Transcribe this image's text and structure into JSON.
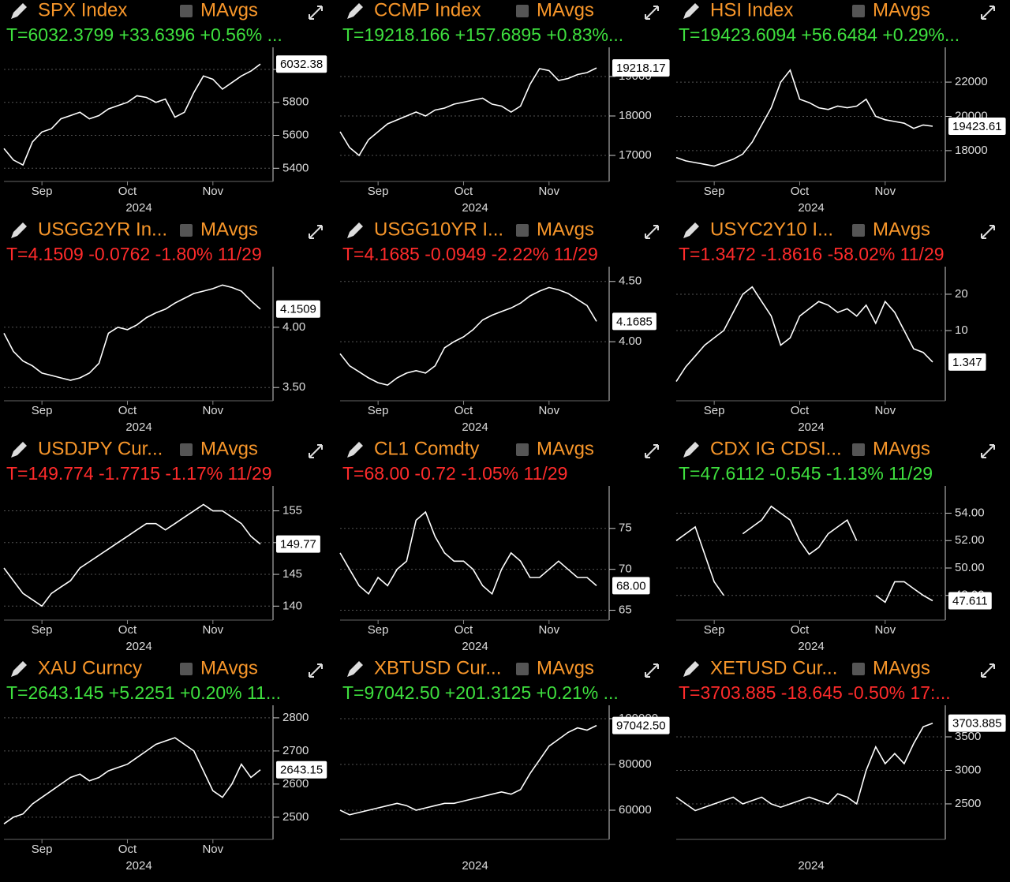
{
  "chart_data": [
    {
      "type": "line",
      "title": "SPX Index",
      "mavgs": "MAvgs",
      "subtitle": "T=6032.3799 +33.6396 +0.56% ...",
      "subtitle_color": "#3ee03e",
      "color": "#ffffff",
      "xlabel": "2024",
      "grid": true,
      "categories": [
        null,
        null,
        null,
        null,
        "Sep",
        null,
        null,
        null,
        null,
        null,
        null,
        null,
        null,
        "Oct",
        null,
        null,
        null,
        null,
        null,
        null,
        null,
        null,
        "Nov",
        null,
        null,
        null,
        null,
        null
      ],
      "values": [
        5520,
        5450,
        5420,
        5560,
        5620,
        5640,
        5700,
        5720,
        5740,
        5700,
        5720,
        5760,
        5780,
        5800,
        5840,
        5830,
        5800,
        5820,
        5710,
        5740,
        5860,
        5960,
        5940,
        5880,
        5920,
        5960,
        5990,
        6032.38
      ],
      "ylim": [
        5320,
        6110
      ],
      "yticks": [
        5400,
        5600,
        5800,
        6000
      ]
    },
    {
      "type": "line",
      "title": "CCMP Index",
      "mavgs": "MAvgs",
      "subtitle": "T=19218.166 +157.6895 +0.83%...",
      "subtitle_color": "#3ee03e",
      "color": "#ffffff",
      "xlabel": "2024",
      "grid": true,
      "categories": [
        null,
        null,
        null,
        null,
        "Sep",
        null,
        null,
        null,
        null,
        null,
        null,
        null,
        null,
        "Oct",
        null,
        null,
        null,
        null,
        null,
        null,
        null,
        null,
        "Nov",
        null,
        null,
        null,
        null,
        null
      ],
      "values": [
        17600,
        17200,
        17000,
        17400,
        17600,
        17800,
        17900,
        18000,
        18100,
        18000,
        18150,
        18200,
        18300,
        18350,
        18400,
        18450,
        18300,
        18250,
        18100,
        18250,
        18800,
        19200,
        19150,
        18900,
        18950,
        19050,
        19100,
        19218.17
      ],
      "ylim": [
        16340,
        19640
      ],
      "yticks": [
        17000,
        18000,
        19000
      ]
    },
    {
      "type": "line",
      "title": "HSI Index",
      "mavgs": "MAvgs",
      "subtitle": "T=19423.6094 +56.6484 +0.29%...",
      "subtitle_color": "#3ee03e",
      "color": "#ffffff",
      "xlabel": "2024",
      "grid": true,
      "categories": [
        null,
        null,
        null,
        null,
        "Sep",
        null,
        null,
        null,
        null,
        null,
        null,
        null,
        null,
        "Oct",
        null,
        null,
        null,
        null,
        null,
        null,
        null,
        null,
        "Nov",
        null,
        null,
        null,
        null,
        null
      ],
      "values": [
        17600,
        17400,
        17300,
        17200,
        17100,
        17300,
        17500,
        17800,
        18500,
        19500,
        20500,
        22000,
        22700,
        21000,
        20800,
        20500,
        20400,
        20600,
        20500,
        20600,
        21000,
        20000,
        19800,
        19700,
        19600,
        19300,
        19500,
        19423.61
      ],
      "ylim": [
        16200,
        23800
      ],
      "yticks": [
        18000,
        20000,
        22000
      ]
    },
    {
      "type": "line",
      "title": "USGG2YR In...",
      "mavgs": "MAvgs",
      "subtitle": "T=4.1509 -0.0762 -1.80% 11/29",
      "subtitle_color": "#ff2b2b",
      "color": "#ffffff",
      "xlabel": "2024",
      "grid": true,
      "categories": [
        null,
        null,
        null,
        null,
        "Sep",
        null,
        null,
        null,
        null,
        null,
        null,
        null,
        null,
        "Oct",
        null,
        null,
        null,
        null,
        null,
        null,
        null,
        null,
        "Nov",
        null,
        null,
        null,
        null,
        null
      ],
      "values": [
        3.95,
        3.8,
        3.72,
        3.68,
        3.62,
        3.6,
        3.58,
        3.56,
        3.58,
        3.62,
        3.7,
        3.95,
        4.0,
        3.98,
        4.02,
        4.08,
        4.12,
        4.15,
        4.2,
        4.24,
        4.28,
        4.3,
        4.32,
        4.35,
        4.33,
        4.3,
        4.22,
        4.1509
      ],
      "ylim": [
        3.39,
        4.47
      ],
      "yticks": [
        {
          "value": 3.5,
          "label": "3.50"
        },
        {
          "value": 4,
          "label": "4.00"
        }
      ]
    },
    {
      "type": "line",
      "title": "USGG10YR I...",
      "mavgs": "MAvgs",
      "subtitle": "T=4.1685 -0.0949 -2.22% 11/29",
      "subtitle_color": "#ff2b2b",
      "color": "#ffffff",
      "xlabel": "2024",
      "grid": true,
      "categories": [
        null,
        null,
        null,
        null,
        "Sep",
        null,
        null,
        null,
        null,
        null,
        null,
        null,
        null,
        "Oct",
        null,
        null,
        null,
        null,
        null,
        null,
        null,
        null,
        "Nov",
        null,
        null,
        null,
        null,
        null
      ],
      "values": [
        3.9,
        3.8,
        3.75,
        3.7,
        3.66,
        3.64,
        3.7,
        3.74,
        3.76,
        3.74,
        3.8,
        3.95,
        4.0,
        4.04,
        4.1,
        4.18,
        4.22,
        4.25,
        4.28,
        4.32,
        4.38,
        4.42,
        4.45,
        4.43,
        4.4,
        4.35,
        4.3,
        4.1685
      ],
      "ylim": [
        3.51,
        4.59
      ],
      "yticks": [
        {
          "value": 4,
          "label": "4.00"
        },
        {
          "value": 4.5,
          "label": "4.50"
        }
      ]
    },
    {
      "type": "line",
      "title": "USYC2Y10 I...",
      "mavgs": "MAvgs",
      "subtitle": "T=1.3472 -1.8616 -58.02% 11/29",
      "subtitle_color": "#ff2b2b",
      "color": "#ffffff",
      "xlabel": "2024",
      "grid": true,
      "categories": [
        null,
        null,
        null,
        null,
        "Sep",
        null,
        null,
        null,
        null,
        null,
        null,
        null,
        null,
        "Oct",
        null,
        null,
        null,
        null,
        null,
        null,
        null,
        null,
        "Nov",
        null,
        null,
        null,
        null,
        null
      ],
      "values": [
        -4,
        0,
        3,
        6,
        8,
        10,
        15,
        20,
        22,
        18,
        14,
        6,
        8,
        14,
        16,
        18,
        17,
        15,
        16,
        14,
        17,
        12,
        18,
        15,
        10,
        5,
        4,
        1.347
      ],
      "ylim": [
        -9.3,
        26.5
      ],
      "yticks": [
        10,
        20
      ]
    },
    {
      "type": "line",
      "title": "USDJPY Cur...",
      "mavgs": "MAvgs",
      "subtitle": "T=149.774 -1.7715 -1.17% 11/29",
      "subtitle_color": "#ff2b2b",
      "color": "#ffffff",
      "xlabel": "2024",
      "grid": true,
      "categories": [
        null,
        null,
        null,
        null,
        "Sep",
        null,
        null,
        null,
        null,
        null,
        null,
        null,
        null,
        "Oct",
        null,
        null,
        null,
        null,
        null,
        null,
        null,
        null,
        "Nov",
        null,
        null,
        null,
        null,
        null
      ],
      "values": [
        146,
        144,
        142,
        141,
        140,
        142,
        143,
        144,
        146,
        147,
        148,
        149,
        150,
        151,
        152,
        153,
        153,
        152,
        153,
        154,
        155,
        156,
        155,
        155,
        154,
        153,
        151,
        149.77
      ],
      "ylim": [
        137.8,
        158.3
      ],
      "yticks": [
        140,
        145,
        150,
        155
      ]
    },
    {
      "type": "line",
      "title": "CL1 Comdty",
      "mavgs": "MAvgs",
      "subtitle": "T=68.00 -0.72 -1.05% 11/29",
      "subtitle_color": "#ff2b2b",
      "color": "#ffffff",
      "xlabel": "2024",
      "grid": true,
      "categories": [
        null,
        null,
        null,
        null,
        "Sep",
        null,
        null,
        null,
        null,
        null,
        null,
        null,
        null,
        "Oct",
        null,
        null,
        null,
        null,
        null,
        null,
        null,
        null,
        "Nov",
        null,
        null,
        null,
        null,
        null
      ],
      "values": [
        72,
        70,
        68,
        67,
        69,
        68,
        70,
        71,
        76,
        77,
        74,
        72,
        71,
        71,
        70,
        68,
        67,
        70,
        72,
        71,
        69,
        69,
        70,
        71,
        70,
        69,
        69,
        68
      ],
      "value_labels": [
        null,
        null,
        null,
        null,
        null,
        null,
        null,
        null,
        null,
        null,
        null,
        null,
        null,
        null,
        null,
        null,
        null,
        null,
        null,
        null,
        null,
        null,
        null,
        null,
        null,
        null,
        null,
        "68.00"
      ],
      "ylim": [
        63.8,
        79.7
      ],
      "yticks": [
        65,
        70,
        75
      ]
    },
    {
      "type": "line",
      "title": "CDX IG CDSI...",
      "mavgs": "MAvgs",
      "subtitle": "T=47.6112 -0.545 -1.13% 11/29",
      "subtitle_color": "#3ee03e",
      "color": "#ffffff",
      "xlabel": "2024",
      "grid": true,
      "categories": [
        null,
        null,
        null,
        null,
        "Sep",
        null,
        null,
        null,
        null,
        null,
        null,
        null,
        null,
        "Oct",
        null,
        null,
        null,
        null,
        null,
        null,
        null,
        null,
        "Nov",
        null,
        null,
        null,
        null,
        null
      ],
      "values": [
        52,
        52.5,
        53,
        51,
        49,
        48,
        null,
        52.5,
        53,
        53.5,
        54.5,
        54,
        53.5,
        52,
        51,
        51.5,
        52.5,
        53,
        53.5,
        52,
        null,
        48,
        47.5,
        49,
        49,
        48.5,
        48,
        47.611
      ],
      "ylim": [
        46.2,
        55.7
      ],
      "yticks": [
        {
          "value": 48,
          "label": "48.00"
        },
        {
          "value": 50,
          "label": "50.00"
        },
        {
          "value": 52,
          "label": "52.00"
        },
        {
          "value": 54,
          "label": "54.00"
        }
      ]
    },
    {
      "type": "line",
      "title": "XAU Curncy",
      "mavgs": "MAvgs",
      "subtitle": "T=2643.145 +5.2251 +0.20% 11...",
      "subtitle_color": "#3ee03e",
      "color": "#ffffff",
      "xlabel": "2024",
      "grid": true,
      "categories": [
        null,
        null,
        null,
        null,
        "Sep",
        null,
        null,
        null,
        null,
        null,
        null,
        null,
        null,
        "Oct",
        null,
        null,
        null,
        null,
        null,
        null,
        null,
        null,
        "Nov",
        null,
        null,
        null,
        null,
        null
      ],
      "values": [
        2480,
        2500,
        2510,
        2540,
        2560,
        2580,
        2600,
        2620,
        2630,
        2610,
        2620,
        2640,
        2650,
        2660,
        2680,
        2700,
        2720,
        2730,
        2740,
        2720,
        2700,
        2640,
        2580,
        2560,
        2600,
        2660,
        2620,
        2643.15
      ],
      "ylim": [
        2433,
        2826
      ],
      "yticks": [
        2500,
        2600,
        2700,
        2800
      ]
    },
    {
      "type": "line",
      "title": "XBTUSD Cur...",
      "mavgs": "MAvgs",
      "subtitle": "T=97042.50 +201.3125 +0.21% ...",
      "subtitle_color": "#3ee03e",
      "color": "#ffffff",
      "xlabel": "2024",
      "grid": true,
      "categories": [
        null,
        null,
        null,
        null,
        null,
        null,
        null,
        null,
        null,
        null,
        null,
        null,
        null,
        null,
        null,
        null,
        null,
        null,
        null,
        null,
        null,
        null,
        null,
        null,
        null,
        null,
        null,
        null
      ],
      "values": [
        60000,
        58000,
        59000,
        60000,
        61000,
        62000,
        63000,
        62000,
        60000,
        61000,
        62000,
        63000,
        63000,
        64000,
        65000,
        66000,
        67000,
        68000,
        67000,
        69000,
        76000,
        82000,
        88000,
        91000,
        94000,
        96000,
        95000,
        97042.5
      ],
      "value_labels": [
        null,
        null,
        null,
        null,
        null,
        null,
        null,
        null,
        null,
        null,
        null,
        null,
        null,
        null,
        null,
        null,
        null,
        null,
        null,
        null,
        null,
        null,
        null,
        null,
        null,
        null,
        null,
        "97042.50"
      ],
      "ylim": [
        47240,
        104140
      ],
      "yticks": [
        60000,
        80000,
        100000
      ]
    },
    {
      "type": "line",
      "title": "XETUSD Cur...",
      "mavgs": "MAvgs",
      "subtitle": "T=3703.885 -18.645 -0.50% 17:...",
      "subtitle_color": "#ff2b2b",
      "color": "#ffffff",
      "xlabel": "2024",
      "grid": true,
      "categories": [
        null,
        null,
        null,
        null,
        null,
        null,
        null,
        null,
        null,
        null,
        null,
        null,
        null,
        null,
        null,
        null,
        null,
        null,
        null,
        null,
        null,
        null,
        null,
        null,
        null,
        null,
        null,
        null
      ],
      "values": [
        2600,
        2500,
        2400,
        2450,
        2500,
        2550,
        2600,
        2500,
        2550,
        2600,
        2500,
        2450,
        2500,
        2550,
        2600,
        2550,
        2500,
        2650,
        2600,
        2500,
        3000,
        3350,
        3100,
        3250,
        3100,
        3400,
        3650,
        3703.885
      ],
      "ylim": [
        1970,
        3912
      ],
      "yticks": [
        2500,
        3000,
        3500
      ]
    }
  ]
}
